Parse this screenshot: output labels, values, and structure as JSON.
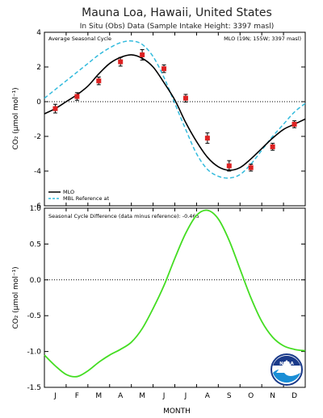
{
  "header": {
    "title": "Mauna Loa, Hawaii, United States",
    "subtitle": "In Situ (Obs) Data (Sample Intake Height: 3397 masl)"
  },
  "panels": {
    "top": {
      "label_left": "Average Seasonal Cycle",
      "label_right": "MLO (19N; 155W; 3397 masl)",
      "legend": [
        {
          "label": "MLO",
          "color": "#000000",
          "style": "solid"
        },
        {
          "label": "MBL Reference at",
          "color": "#33bbdd",
          "style": "dashed"
        }
      ]
    },
    "bottom": {
      "label_left": "Seasonal Cycle Difference (data minus reference): -0.465"
    },
    "ylabel": "CO₂ (μmol mol⁻¹)",
    "xlabel": "MONTH"
  },
  "logo": {
    "text": "NOAA"
  },
  "colors": {
    "mlo": "#000000",
    "reference": "#33bbdd",
    "error_points": "#dd2222",
    "difference": "#44dd22"
  },
  "chart_data": [
    {
      "type": "line",
      "title": "Average Seasonal Cycle",
      "ylabel": "CO₂ (μmol mol⁻¹)",
      "ylim": [
        -6,
        4
      ],
      "yticks": [
        -6,
        -4,
        -2,
        0,
        2,
        4
      ],
      "xlim": [
        0,
        12
      ],
      "categories": [
        "J",
        "F",
        "M",
        "A",
        "M",
        "J",
        "J",
        "A",
        "S",
        "O",
        "N",
        "D"
      ],
      "zero_line": true,
      "grid": false,
      "legend_position": "bottom-left",
      "series": [
        {
          "name": "MLO",
          "x": [
            0,
            0.5,
            1,
            1.5,
            2,
            2.5,
            3,
            3.5,
            4,
            4.5,
            5,
            5.5,
            6,
            6.5,
            7,
            7.5,
            8,
            8.5,
            9,
            9.5,
            10,
            10.5,
            11,
            11.5,
            12
          ],
          "values": [
            -0.7,
            -0.4,
            0.0,
            0.4,
            0.9,
            1.6,
            2.2,
            2.55,
            2.7,
            2.5,
            2.0,
            1.1,
            0.1,
            -1.2,
            -2.3,
            -3.2,
            -3.75,
            -3.95,
            -3.8,
            -3.3,
            -2.7,
            -2.1,
            -1.6,
            -1.3,
            -1.0
          ]
        },
        {
          "name": "MBL Reference at",
          "x": [
            0,
            0.5,
            1,
            1.5,
            2,
            2.5,
            3,
            3.5,
            4,
            4.5,
            5,
            5.5,
            6,
            6.5,
            7,
            7.5,
            8,
            8.5,
            9,
            9.5,
            10,
            10.5,
            11,
            11.5,
            12
          ],
          "values": [
            0.2,
            0.7,
            1.2,
            1.7,
            2.2,
            2.7,
            3.1,
            3.4,
            3.5,
            3.3,
            2.6,
            1.4,
            -0.1,
            -1.6,
            -3.0,
            -3.9,
            -4.3,
            -4.4,
            -4.2,
            -3.6,
            -2.8,
            -2.0,
            -1.3,
            -0.6,
            -0.1
          ]
        },
        {
          "name": "",
          "type": "errorbar",
          "x": [
            0.5,
            1.5,
            2.5,
            3.5,
            4.5,
            5.5,
            6.5,
            7.5,
            8.5,
            9.5,
            10.5,
            11.5
          ],
          "values": [
            -0.4,
            0.3,
            1.2,
            2.3,
            2.7,
            1.9,
            0.2,
            -2.1,
            -3.7,
            -3.8,
            -2.6,
            -1.3
          ],
          "error": [
            0.25,
            0.22,
            0.22,
            0.25,
            0.3,
            0.22,
            0.22,
            0.3,
            0.3,
            0.2,
            0.2,
            0.2
          ]
        }
      ]
    },
    {
      "type": "line",
      "title": "Seasonal Cycle Difference (data minus reference): -0.465",
      "xlabel": "MONTH",
      "ylabel": "CO₂ (μmol mol⁻¹)",
      "ylim": [
        -1.5,
        1.0
      ],
      "yticks": [
        "1.0",
        "0.5",
        "0.0",
        "-0.5",
        "-1.0",
        "-1.5"
      ],
      "xlim": [
        0,
        12
      ],
      "categories": [
        "J",
        "F",
        "M",
        "A",
        "M",
        "J",
        "J",
        "A",
        "S",
        "O",
        "N",
        "D"
      ],
      "zero_line": true,
      "grid": false,
      "series": [
        {
          "name": "",
          "x": [
            0,
            0.5,
            1,
            1.5,
            2,
            2.5,
            3,
            3.5,
            4,
            4.5,
            5,
            5.5,
            6,
            6.5,
            7,
            7.5,
            8,
            8.5,
            9,
            9.5,
            10,
            10.5,
            11,
            11.5,
            12
          ],
          "values": [
            -1.05,
            -1.2,
            -1.32,
            -1.35,
            -1.27,
            -1.15,
            -1.05,
            -0.97,
            -0.87,
            -0.68,
            -0.4,
            -0.08,
            0.3,
            0.65,
            0.9,
            0.97,
            0.85,
            0.55,
            0.15,
            -0.25,
            -0.58,
            -0.8,
            -0.92,
            -0.97,
            -0.99
          ]
        }
      ]
    }
  ]
}
